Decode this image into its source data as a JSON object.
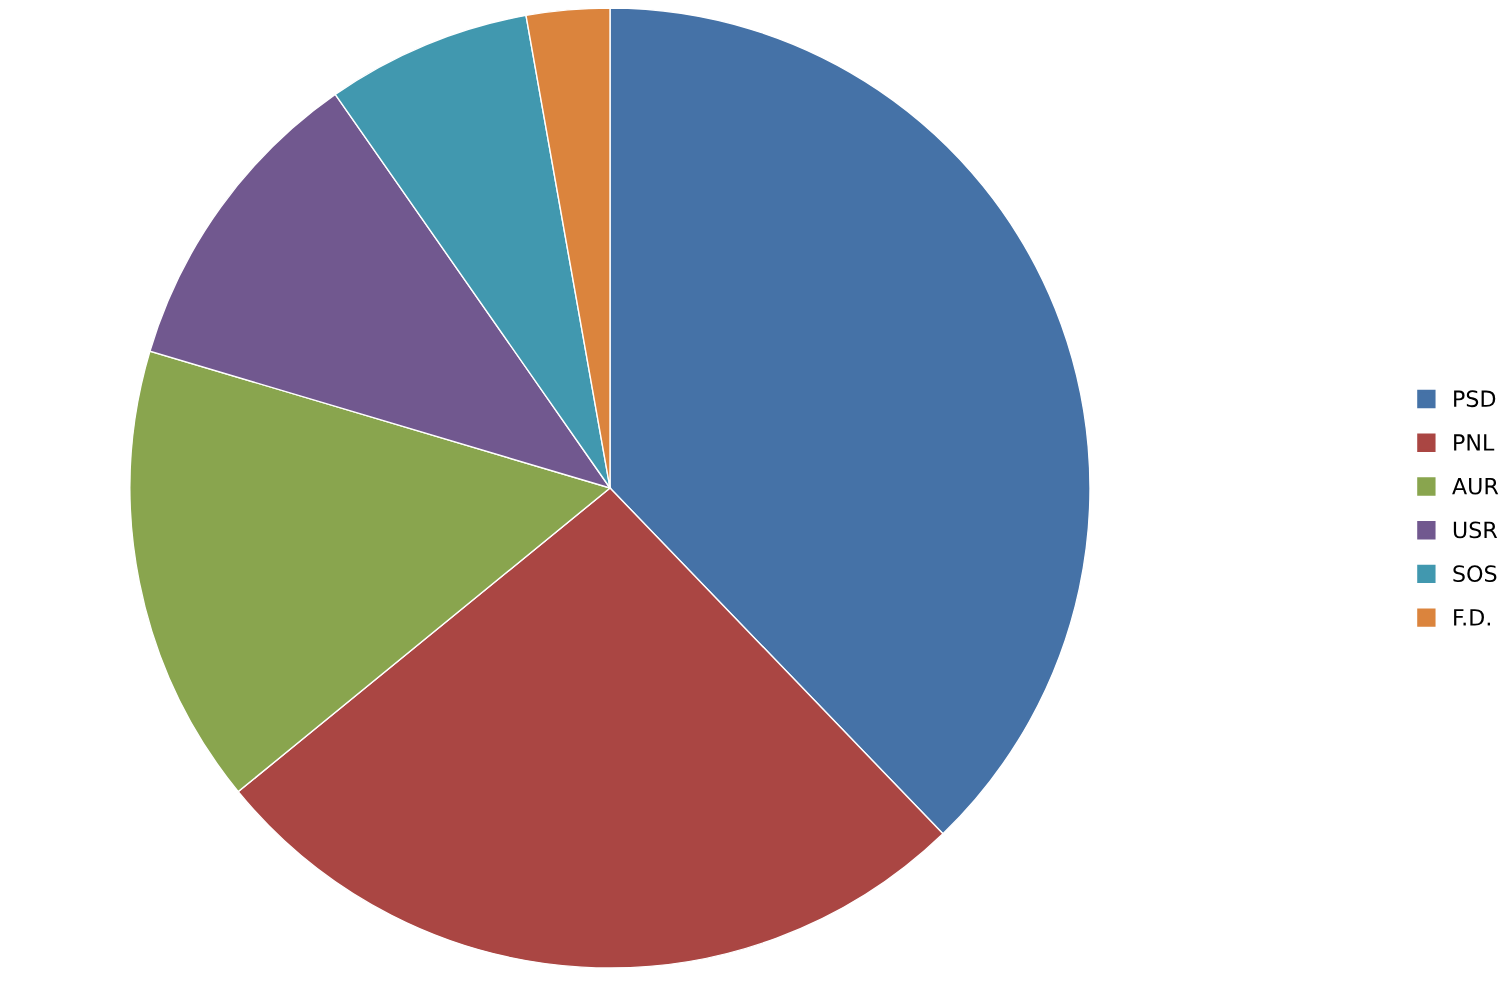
{
  "chart_data": {
    "type": "pie",
    "categories": [
      "PSD",
      "PNL",
      "AUR",
      "USR",
      "SOS",
      "F.D."
    ],
    "values": [
      37.8,
      26.3,
      15.5,
      10.7,
      6.9,
      2.8
    ],
    "colors": [
      "#4572a7",
      "#aa4643",
      "#89a54e",
      "#71588f",
      "#4198af",
      "#db843d"
    ],
    "legend": "right"
  }
}
